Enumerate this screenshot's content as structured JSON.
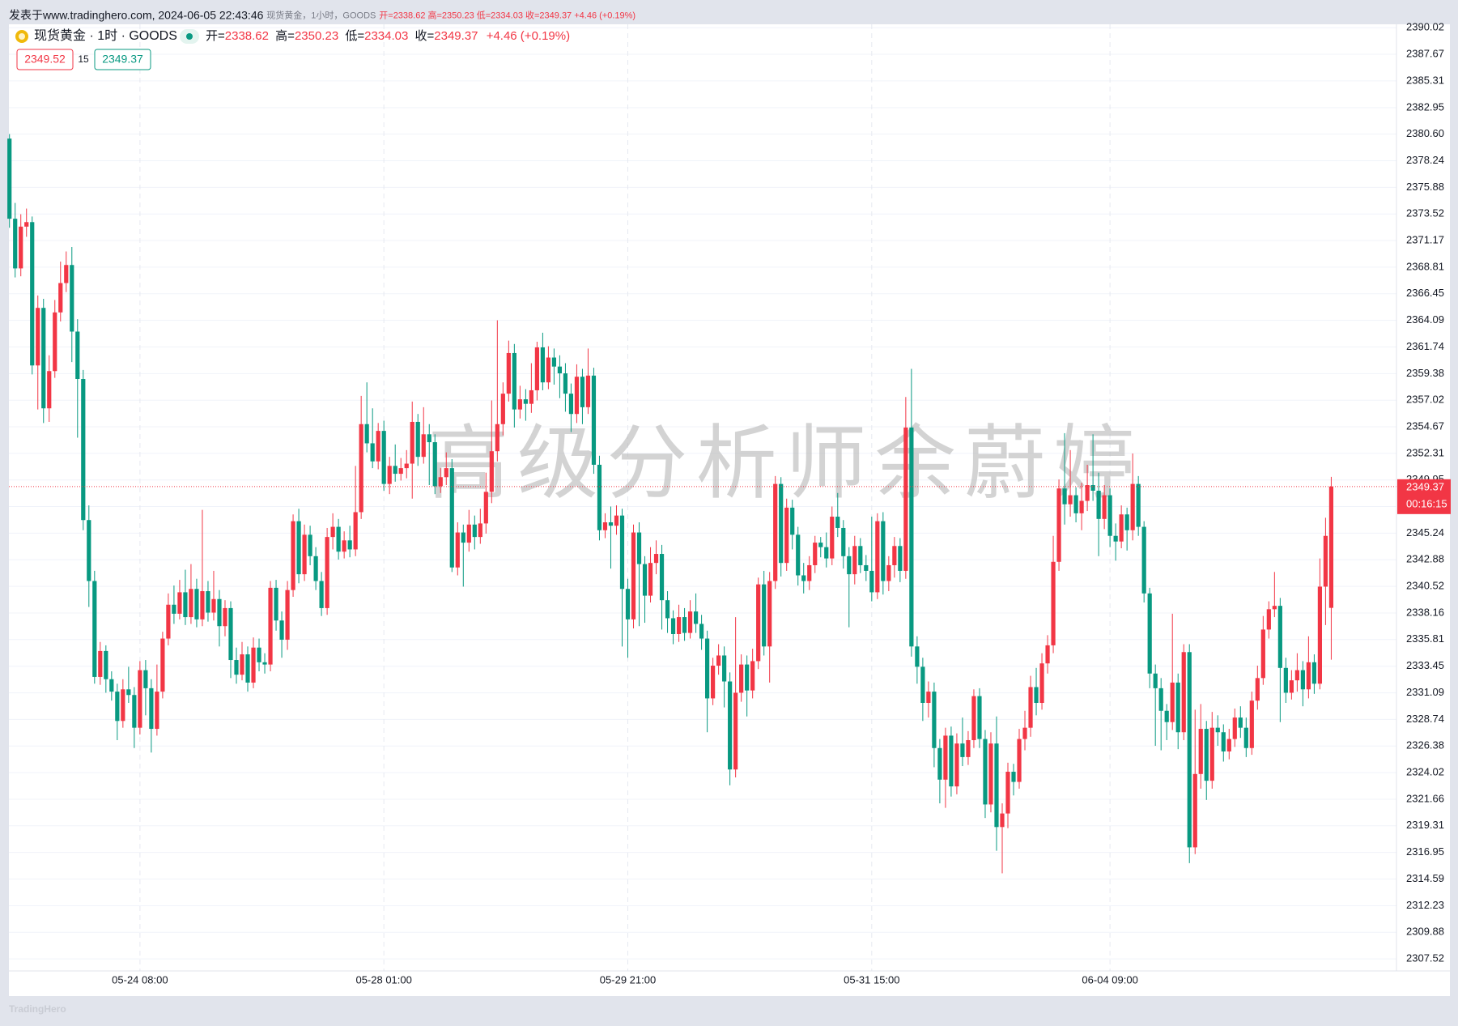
{
  "header": {
    "publish": "发表于www.tradinghero.com, 2024-06-05 22:43:46",
    "summary": "现货黄金，1小时，GOODS",
    "summary_ohlc": "开=2338.62 高=2350.23 低=2334.03 收=2349.37 +4.46 (+0.19%)"
  },
  "legend": {
    "symbol": "现货黄金 · 1时 · GOODS",
    "items": [
      {
        "label": "开=",
        "value": "2338.62"
      },
      {
        "label": "高=",
        "value": "2350.23"
      },
      {
        "label": "低=",
        "value": "2334.03"
      },
      {
        "label": "收=",
        "value": "2349.37"
      }
    ],
    "change": "+4.46 (+0.19%)"
  },
  "quote": {
    "bid": "2349.52",
    "spread": "15",
    "ask": "2349.37"
  },
  "footer": {
    "logo": "TradingHero"
  },
  "chart_data": {
    "type": "candlestick",
    "up_color": "#f23645",
    "down_color": "#089981",
    "grid": true,
    "watermark": "高级分析师余蔚婷",
    "countdown": "00:16:15",
    "xlim": [
      -0.1,
      244.5
    ],
    "xticks": [
      {
        "value": 23,
        "label": "05-24 08:00"
      },
      {
        "value": 66,
        "label": "05-28 01:00"
      },
      {
        "value": 109,
        "label": "05-29 21:00"
      },
      {
        "value": 152,
        "label": "05-31 15:00"
      },
      {
        "value": 194,
        "label": "06-04 09:00"
      }
    ],
    "ylim": [
      2306.45,
      2390.5
    ],
    "yticks": [
      2390.02,
      2387.67,
      2385.31,
      2382.95,
      {
        "value": 2380.6,
        "label": "2380.60"
      },
      2378.24,
      2375.88,
      2373.52,
      2371.17,
      2368.81,
      2366.45,
      2364.09,
      2361.74,
      2359.38,
      2357.02,
      2354.67,
      2352.31,
      2349.95,
      {
        "value": 2347.6,
        "label": "2347.60"
      },
      2345.24,
      2342.88,
      2340.52,
      2338.16,
      2335.81,
      2333.45,
      2331.09,
      2328.74,
      2326.38,
      2324.02,
      2321.66,
      2319.31,
      2316.95,
      2314.59,
      2312.23,
      2309.88,
      2307.52
    ],
    "open": [
      2380.2,
      2373.1,
      2368.7,
      2372.4,
      2372.8,
      2360.1,
      2365.2,
      2356.3,
      2359.6,
      2364.8,
      2367.4,
      2369.0,
      2363.1,
      2358.9,
      2346.4,
      2341.0,
      2332.5,
      2334.8,
      2332.3,
      2331.2,
      2328.6,
      2331.4,
      2330.9,
      2328.0,
      2333.1,
      2331.5,
      2327.9,
      2331.2,
      2335.9,
      2338.9,
      2338.1,
      2340.0,
      2337.8,
      2340.3,
      2337.6,
      2340.1,
      2338.2,
      2339.4,
      2337.0,
      2338.6,
      2334.0,
      2332.7,
      2334.5,
      2332.0,
      2335.1,
      2333.8,
      2333.6,
      2340.4,
      2337.5,
      2335.8,
      2340.2,
      2346.3,
      2341.6,
      2345.1,
      2343.2,
      2341.0,
      2338.6,
      2344.9,
      2345.8,
      2343.6,
      2344.6,
      2343.8,
      2347.1,
      2354.9,
      2353.2,
      2351.6,
      2354.3,
      2349.6,
      2351.2,
      2350.5,
      2351.0,
      2351.4,
      2355.1,
      2352.0,
      2354.0,
      2353.3,
      2349.4,
      2350.2,
      2351.0,
      2342.2,
      2345.3,
      2344.4,
      2346.0,
      2344.9,
      2346.1,
      2348.9,
      2352.5,
      2354.9,
      2357.6,
      2361.2,
      2356.2,
      2357.1,
      2356.7,
      2357.9,
      2361.7,
      2358.6,
      2360.8,
      2360.0,
      2359.4,
      2357.6,
      2355.8,
      2359.1,
      2356.4,
      2359.2,
      2351.3,
      2345.5,
      2346.2,
      2345.9,
      2346.8,
      2340.3,
      2337.6,
      2345.3,
      2342.5,
      2339.7,
      2342.6,
      2343.4,
      2339.3,
      2337.7,
      2336.3,
      2337.8,
      2336.4,
      2338.3,
      2337.2,
      2335.9,
      2330.6,
      2333.5,
      2334.4,
      2332.1,
      2324.3,
      2331.1,
      2333.6,
      2331.3,
      2333.9,
      2340.7,
      2335.2,
      2341.0,
      2349.6,
      2342.6,
      2347.5,
      2345.1,
      2341.5,
      2341.0,
      2342.4,
      2344.4,
      2344.0,
      2343.0,
      2346.7,
      2345.7,
      2343.2,
      2341.6,
      2344.1,
      2342.4,
      2341.9,
      2340.0,
      2346.3,
      2341.0,
      2342.4,
      2344.1,
      2341.9,
      2354.6,
      2335.2,
      2333.4,
      2330.2,
      2331.2,
      2326.2,
      2323.4,
      2327.3,
      2322.8,
      2326.6,
      2325.4,
      2326.9,
      2330.8,
      2327.0,
      2321.2,
      2326.6,
      2319.2,
      2320.4,
      2324.1,
      2323.2,
      2327.0,
      2328.0,
      2331.6,
      2330.2,
      2333.7,
      2335.3,
      2342.7,
      2349.2,
      2347.8,
      2348.6,
      2347.0,
      2348.1,
      2349.5,
      2349.0,
      2346.5,
      2348.6,
      2345.0,
      2344.5,
      2346.9,
      2345.5,
      2349.6,
      2345.8,
      2339.9,
      2332.8,
      2331.5,
      2329.5,
      2328.5,
      2332.0,
      2327.6,
      2334.7,
      2317.4,
      2323.9,
      2327.9,
      2323.3,
      2328.0,
      2327.6,
      2325.9,
      2327.0,
      2328.9,
      2328.0,
      2326.2,
      2330.4,
      2332.4,
      2336.7,
      2338.5,
      2338.8,
      2333.3,
      2331.1,
      2332.2,
      2333.1,
      2331.4,
      2333.8,
      2331.9,
      2340.5,
      2338.62
    ],
    "high": [
      2380.6,
      2374.5,
      2373.5,
      2374.0,
      2373.3,
      2366.3,
      2366.0,
      2361.0,
      2365.9,
      2369.3,
      2370.2,
      2370.6,
      2364.2,
      2359.7,
      2347.7,
      2341.9,
      2335.6,
      2335.3,
      2333.0,
      2331.9,
      2332.3,
      2333.4,
      2331.6,
      2333.9,
      2334.0,
      2332.3,
      2333.6,
      2336.5,
      2339.9,
      2340.6,
      2341.1,
      2342.0,
      2342.5,
      2341.2,
      2347.3,
      2341.0,
      2341.9,
      2340.2,
      2339.3,
      2339.2,
      2335.1,
      2335.6,
      2335.2,
      2336.0,
      2335.9,
      2334.6,
      2341.0,
      2341.1,
      2338.3,
      2341.0,
      2346.9,
      2347.4,
      2346.0,
      2345.9,
      2344.0,
      2341.8,
      2345.7,
      2347.0,
      2346.5,
      2345.4,
      2345.9,
      2351.2,
      2357.4,
      2358.6,
      2356.3,
      2355.0,
      2355.2,
      2352.0,
      2353.1,
      2351.9,
      2352.6,
      2356.9,
      2355.8,
      2356.4,
      2354.9,
      2354.0,
      2351.0,
      2352.4,
      2351.8,
      2346.2,
      2346.0,
      2347.3,
      2346.8,
      2347.4,
      2350.6,
      2357.0,
      2364.1,
      2358.6,
      2362.3,
      2362.0,
      2358.3,
      2358.0,
      2360.3,
      2362.2,
      2363.0,
      2361.8,
      2361.6,
      2361.0,
      2360.3,
      2358.5,
      2360.2,
      2359.8,
      2361.6,
      2359.9,
      2352.1,
      2347.0,
      2347.6,
      2347.7,
      2347.4,
      2341.2,
      2346.0,
      2346.2,
      2343.2,
      2344.0,
      2344.6,
      2344.2,
      2340.1,
      2338.4,
      2338.9,
      2338.6,
      2339.3,
      2339.9,
      2338.0,
      2336.6,
      2334.2,
      2335.4,
      2335.2,
      2332.9,
      2337.8,
      2334.5,
      2334.4,
      2335.0,
      2341.3,
      2341.9,
      2341.8,
      2350.3,
      2350.2,
      2348.3,
      2348.2,
      2345.8,
      2342.6,
      2343.2,
      2345.0,
      2344.9,
      2345.3,
      2347.6,
      2348.8,
      2346.4,
      2344.0,
      2345.0,
      2344.8,
      2343.3,
      2346.7,
      2347.0,
      2347.1,
      2343.2,
      2344.9,
      2344.8,
      2357.3,
      2359.8,
      2336.1,
      2334.2,
      2332.1,
      2332.0,
      2327.0,
      2328.0,
      2328.1,
      2327.5,
      2328.9,
      2327.7,
      2331.4,
      2331.5,
      2327.8,
      2327.6,
      2329.0,
      2321.3,
      2324.9,
      2324.8,
      2327.9,
      2329.5,
      2332.6,
      2333.3,
      2334.6,
      2336.2,
      2345.0,
      2350.0,
      2354.1,
      2352.6,
      2349.3,
      2349.7,
      2351.3,
      2354.0,
      2350.6,
      2349.5,
      2349.2,
      2346.1,
      2347.7,
      2347.5,
      2352.3,
      2350.3,
      2346.3,
      2340.4,
      2333.6,
      2332.4,
      2330.1,
      2338.1,
      2332.8,
      2335.4,
      2335.4,
      2329.6,
      2330.1,
      2328.6,
      2329.4,
      2329.1,
      2328.3,
      2327.9,
      2329.7,
      2329.9,
      2328.9,
      2331.2,
      2333.5,
      2337.9,
      2339.2,
      2341.8,
      2339.5,
      2334.2,
      2333.1,
      2334.6,
      2333.9,
      2336.1,
      2334.5,
      2343.0,
      2346.6,
      2350.23
    ],
    "low": [
      2372.3,
      2367.9,
      2368.0,
      2371.5,
      2359.3,
      2356.2,
      2355.0,
      2355.1,
      2359.0,
      2364.0,
      2366.6,
      2360.4,
      2353.7,
      2345.5,
      2338.7,
      2331.9,
      2331.8,
      2331.1,
      2330.4,
      2326.9,
      2328.0,
      2330.2,
      2326.2,
      2327.4,
      2329.1,
      2325.8,
      2327.3,
      2330.6,
      2335.3,
      2337.2,
      2337.6,
      2337.1,
      2337.2,
      2336.9,
      2337.0,
      2337.4,
      2337.5,
      2335.2,
      2336.1,
      2332.4,
      2331.9,
      2332.2,
      2331.2,
      2331.5,
      2333.0,
      2332.8,
      2333.0,
      2336.6,
      2334.2,
      2334.9,
      2339.6,
      2340.8,
      2341.0,
      2342.4,
      2340.2,
      2337.9,
      2338.0,
      2343.8,
      2342.9,
      2343.0,
      2343.1,
      2343.2,
      2346.5,
      2352.4,
      2351.0,
      2350.9,
      2349.0,
      2348.7,
      2349.8,
      2349.9,
      2350.1,
      2348.3,
      2351.2,
      2351.4,
      2349.5,
      2348.7,
      2348.8,
      2349.5,
      2341.8,
      2341.5,
      2340.5,
      2343.6,
      2343.8,
      2344.3,
      2345.2,
      2347.9,
      2351.6,
      2353.9,
      2356.9,
      2354.6,
      2355.4,
      2355.2,
      2355.9,
      2357.0,
      2357.9,
      2358.0,
      2358.4,
      2357.2,
      2356.0,
      2354.2,
      2355.0,
      2354.9,
      2355.8,
      2350.5,
      2344.6,
      2344.8,
      2342.1,
      2345.1,
      2335.2,
      2334.2,
      2336.8,
      2337.0,
      2337.3,
      2339.1,
      2341.6,
      2336.7,
      2336.4,
      2335.4,
      2335.6,
      2335.7,
      2335.9,
      2336.4,
      2334.9,
      2327.6,
      2330.0,
      2332.7,
      2329.8,
      2322.9,
      2323.6,
      2330.3,
      2329.0,
      2330.6,
      2333.2,
      2334.4,
      2332.0,
      2340.3,
      2341.4,
      2341.9,
      2343.8,
      2340.6,
      2339.9,
      2340.2,
      2341.7,
      2343.1,
      2342.2,
      2342.4,
      2344.9,
      2342.1,
      2336.9,
      2340.7,
      2341.7,
      2341.0,
      2339.2,
      2339.4,
      2339.8,
      2340.1,
      2341.3,
      2340.9,
      2341.2,
      2334.3,
      2331.9,
      2328.6,
      2328.9,
      2324.5,
      2321.3,
      2320.9,
      2321.9,
      2322.1,
      2324.6,
      2324.7,
      2326.2,
      2326.2,
      2320.0,
      2320.5,
      2317.1,
      2315.1,
      2319.1,
      2322.0,
      2322.6,
      2326.0,
      2327.2,
      2329.1,
      2329.6,
      2332.8,
      2334.6,
      2341.9,
      2346.0,
      2346.7,
      2346.2,
      2345.5,
      2347.2,
      2348.1,
      2343.2,
      2345.6,
      2344.0,
      2342.8,
      2343.9,
      2343.7,
      2344.6,
      2345.0,
      2339.1,
      2331.5,
      2326.4,
      2326.0,
      2326.9,
      2327.8,
      2326.1,
      2326.9,
      2316.0,
      2316.8,
      2322.6,
      2321.6,
      2322.6,
      2326.4,
      2325.0,
      2325.2,
      2326.3,
      2327.1,
      2325.4,
      2325.6,
      2329.6,
      2331.8,
      2335.9,
      2337.8,
      2328.5,
      2330.2,
      2330.5,
      2331.2,
      2329.9,
      2330.6,
      2331.0,
      2331.4,
      2337.1,
      2334.03
    ],
    "close": [
      2373.1,
      2368.7,
      2372.4,
      2372.8,
      2360.1,
      2365.2,
      2356.3,
      2359.6,
      2364.8,
      2367.4,
      2369.0,
      2363.1,
      2358.9,
      2346.4,
      2341.0,
      2332.5,
      2334.8,
      2332.3,
      2331.2,
      2328.6,
      2331.4,
      2330.9,
      2328.0,
      2333.1,
      2331.5,
      2327.9,
      2331.2,
      2335.9,
      2338.9,
      2338.1,
      2340.0,
      2337.8,
      2340.3,
      2337.6,
      2340.1,
      2338.2,
      2339.4,
      2337.0,
      2338.6,
      2334.0,
      2332.7,
      2334.5,
      2332.0,
      2335.1,
      2333.8,
      2333.6,
      2340.4,
      2337.5,
      2335.8,
      2340.2,
      2346.3,
      2341.6,
      2345.1,
      2343.2,
      2341.0,
      2338.6,
      2344.9,
      2345.8,
      2343.6,
      2344.6,
      2343.8,
      2347.1,
      2354.9,
      2353.2,
      2351.6,
      2354.3,
      2349.6,
      2351.2,
      2350.5,
      2351.0,
      2351.4,
      2355.1,
      2352.0,
      2354.0,
      2353.3,
      2349.4,
      2350.2,
      2351.0,
      2342.2,
      2345.3,
      2344.4,
      2346.0,
      2344.9,
      2346.1,
      2348.9,
      2352.5,
      2354.9,
      2357.6,
      2361.2,
      2356.2,
      2357.1,
      2356.7,
      2357.9,
      2361.7,
      2358.6,
      2360.8,
      2360.0,
      2359.4,
      2357.6,
      2355.8,
      2359.1,
      2356.4,
      2359.2,
      2351.3,
      2345.5,
      2346.2,
      2345.9,
      2346.8,
      2340.3,
      2337.6,
      2345.3,
      2342.5,
      2339.7,
      2342.6,
      2343.4,
      2339.3,
      2337.7,
      2336.3,
      2337.8,
      2336.4,
      2338.3,
      2337.2,
      2335.9,
      2330.6,
      2333.5,
      2334.4,
      2332.1,
      2324.3,
      2331.1,
      2333.6,
      2331.3,
      2333.9,
      2340.7,
      2335.2,
      2341.0,
      2349.6,
      2342.6,
      2347.5,
      2345.1,
      2341.5,
      2341.0,
      2342.4,
      2344.4,
      2344.0,
      2343.0,
      2346.7,
      2345.7,
      2343.2,
      2341.6,
      2344.1,
      2342.4,
      2341.9,
      2340.0,
      2346.3,
      2341.0,
      2342.4,
      2344.1,
      2341.9,
      2354.6,
      2335.2,
      2333.4,
      2330.2,
      2331.2,
      2326.2,
      2323.4,
      2327.3,
      2322.8,
      2326.6,
      2325.4,
      2326.9,
      2330.8,
      2327.0,
      2321.2,
      2326.6,
      2319.2,
      2320.4,
      2324.1,
      2323.2,
      2327.0,
      2328.0,
      2331.6,
      2330.2,
      2333.7,
      2335.3,
      2342.7,
      2349.2,
      2347.8,
      2348.6,
      2347.0,
      2348.1,
      2349.5,
      2349.0,
      2346.5,
      2348.6,
      2345.0,
      2344.5,
      2346.9,
      2345.5,
      2349.6,
      2345.8,
      2339.9,
      2332.8,
      2331.5,
      2329.5,
      2328.5,
      2332.0,
      2327.6,
      2334.7,
      2317.4,
      2323.9,
      2327.9,
      2323.3,
      2328.0,
      2327.6,
      2325.9,
      2327.0,
      2328.9,
      2328.0,
      2326.2,
      2330.4,
      2332.4,
      2336.7,
      2338.5,
      2338.8,
      2333.3,
      2331.1,
      2332.2,
      2333.1,
      2331.4,
      2333.8,
      2331.9,
      2340.5,
      2345.0,
      2349.37
    ]
  }
}
